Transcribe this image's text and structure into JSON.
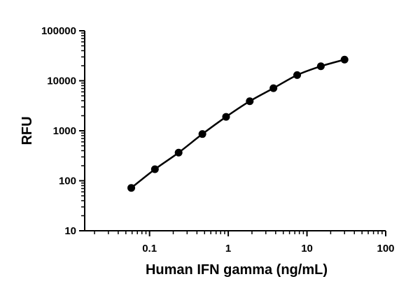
{
  "chart_data": {
    "type": "scatter",
    "title": "",
    "xlabel": "Human IFN gamma (ng/mL)",
    "ylabel": "RFU",
    "x_scale": "log",
    "y_scale": "log",
    "xlim": [
      0.015,
      100
    ],
    "ylim": [
      10,
      100000
    ],
    "x_tick_labels": [
      "0.1",
      "1",
      "10",
      "100"
    ],
    "y_tick_labels": [
      "10",
      "100",
      "1000",
      "10000",
      "100000"
    ],
    "grid": false,
    "legend": "none",
    "series": [
      {
        "marker": "circle",
        "fit_curve": true,
        "x": [
          0.0586,
          0.117,
          0.234,
          0.469,
          0.938,
          1.875,
          3.75,
          7.5,
          15,
          30
        ],
        "y": [
          72,
          170,
          365,
          860,
          1900,
          3900,
          7100,
          13000,
          19500,
          26500
        ]
      }
    ]
  }
}
